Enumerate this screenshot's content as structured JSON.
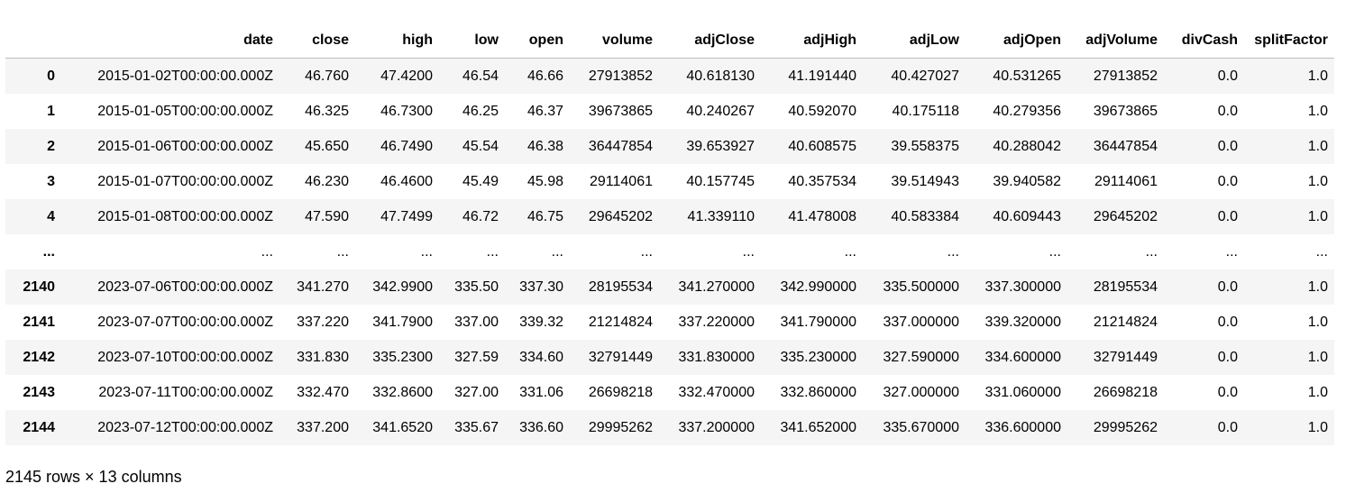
{
  "table": {
    "columns": [
      "",
      "date",
      "close",
      "high",
      "low",
      "open",
      "volume",
      "adjClose",
      "adjHigh",
      "adjLow",
      "adjOpen",
      "adjVolume",
      "divCash",
      "splitFactor"
    ],
    "rows": [
      [
        "0",
        "2015-01-02T00:00:00.000Z",
        "46.760",
        "47.4200",
        "46.54",
        "46.66",
        "27913852",
        "40.618130",
        "41.191440",
        "40.427027",
        "40.531265",
        "27913852",
        "0.0",
        "1.0"
      ],
      [
        "1",
        "2015-01-05T00:00:00.000Z",
        "46.325",
        "46.7300",
        "46.25",
        "46.37",
        "39673865",
        "40.240267",
        "40.592070",
        "40.175118",
        "40.279356",
        "39673865",
        "0.0",
        "1.0"
      ],
      [
        "2",
        "2015-01-06T00:00:00.000Z",
        "45.650",
        "46.7490",
        "45.54",
        "46.38",
        "36447854",
        "39.653927",
        "40.608575",
        "39.558375",
        "40.288042",
        "36447854",
        "0.0",
        "1.0"
      ],
      [
        "3",
        "2015-01-07T00:00:00.000Z",
        "46.230",
        "46.4600",
        "45.49",
        "45.98",
        "29114061",
        "40.157745",
        "40.357534",
        "39.514943",
        "39.940582",
        "29114061",
        "0.0",
        "1.0"
      ],
      [
        "4",
        "2015-01-08T00:00:00.000Z",
        "47.590",
        "47.7499",
        "46.72",
        "46.75",
        "29645202",
        "41.339110",
        "41.478008",
        "40.583384",
        "40.609443",
        "29645202",
        "0.0",
        "1.0"
      ],
      [
        "...",
        "...",
        "...",
        "...",
        "...",
        "...",
        "...",
        "...",
        "...",
        "...",
        "...",
        "...",
        "...",
        "..."
      ],
      [
        "2140",
        "2023-07-06T00:00:00.000Z",
        "341.270",
        "342.9900",
        "335.50",
        "337.30",
        "28195534",
        "341.270000",
        "342.990000",
        "335.500000",
        "337.300000",
        "28195534",
        "0.0",
        "1.0"
      ],
      [
        "2141",
        "2023-07-07T00:00:00.000Z",
        "337.220",
        "341.7900",
        "337.00",
        "339.32",
        "21214824",
        "337.220000",
        "341.790000",
        "337.000000",
        "339.320000",
        "21214824",
        "0.0",
        "1.0"
      ],
      [
        "2142",
        "2023-07-10T00:00:00.000Z",
        "331.830",
        "335.2300",
        "327.59",
        "334.60",
        "32791449",
        "331.830000",
        "335.230000",
        "327.590000",
        "334.600000",
        "32791449",
        "0.0",
        "1.0"
      ],
      [
        "2143",
        "2023-07-11T00:00:00.000Z",
        "332.470",
        "332.8600",
        "327.00",
        "331.06",
        "26698218",
        "332.470000",
        "332.860000",
        "327.000000",
        "331.060000",
        "26698218",
        "0.0",
        "1.0"
      ],
      [
        "2144",
        "2023-07-12T00:00:00.000Z",
        "337.200",
        "341.6520",
        "335.67",
        "336.60",
        "29995262",
        "337.200000",
        "341.652000",
        "335.670000",
        "336.600000",
        "29995262",
        "0.0",
        "1.0"
      ]
    ]
  },
  "shape_note": "2145 rows × 13 columns",
  "colors": {
    "stripe": "#f5f5f5",
    "header_rule": "#bdbdbd",
    "text": "#000000"
  }
}
